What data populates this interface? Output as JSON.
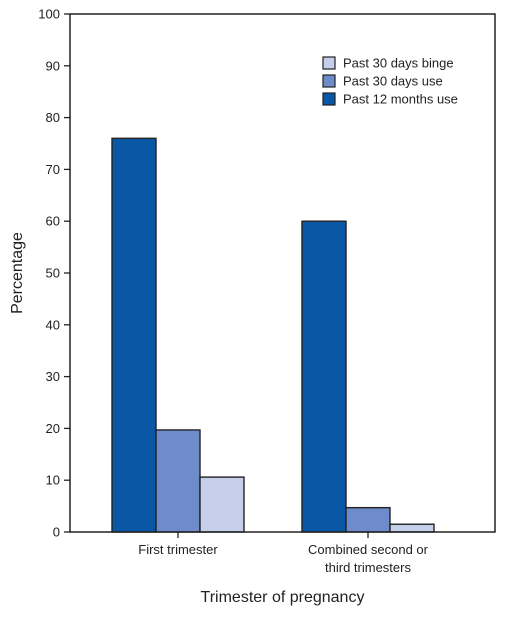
{
  "chart_data": {
    "type": "bar",
    "title": "",
    "xlabel": "Trimester of pregnancy",
    "ylabel": "Percentage",
    "ylim": [
      0,
      100
    ],
    "yticks": [
      0,
      10,
      20,
      30,
      40,
      50,
      60,
      70,
      80,
      90,
      100
    ],
    "categories": [
      [
        "First trimester"
      ],
      [
        "Combined second or",
        "third trimesters"
      ]
    ],
    "series": [
      {
        "name": "Past 12 months use",
        "values": [
          76,
          60
        ],
        "color": "#0a57a6"
      },
      {
        "name": "Past 30 days use",
        "values": [
          19.7,
          4.7
        ],
        "color": "#6e8ccb"
      },
      {
        "name": "Past 30 days binge",
        "values": [
          10.6,
          1.5
        ],
        "color": "#c6cfea"
      }
    ],
    "legend": {
      "placement": "top-right",
      "order": [
        "Past 30 days binge",
        "Past 30 days use",
        "Past 12 months use"
      ]
    },
    "grid": false,
    "bar_stroke": "#222222"
  }
}
